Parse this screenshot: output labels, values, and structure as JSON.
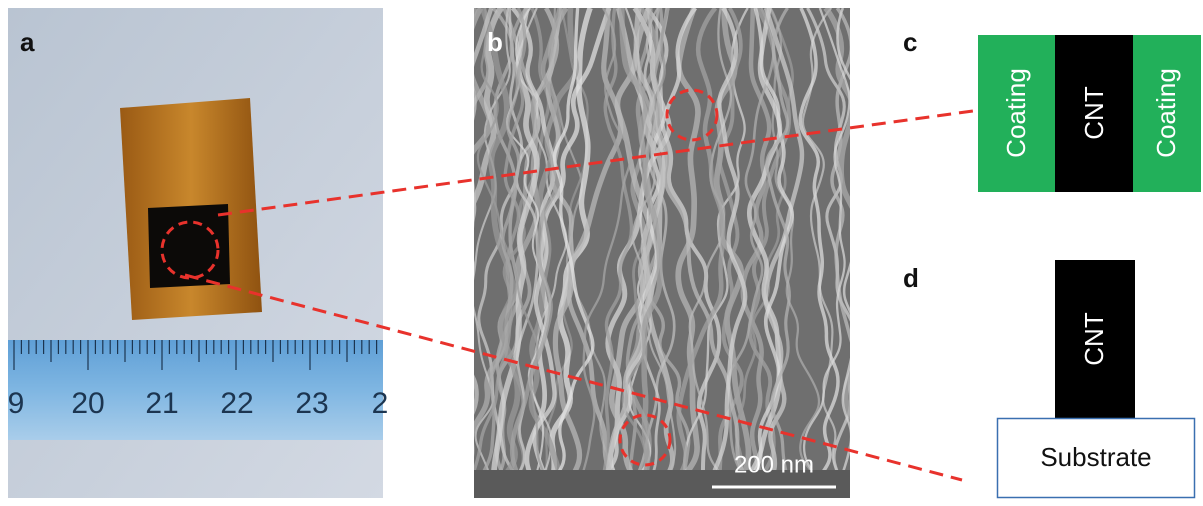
{
  "panels": {
    "a": {
      "label": "a",
      "ruler_labels": [
        "9",
        "20",
        "21",
        "22",
        "23",
        "2"
      ]
    },
    "b": {
      "label": "b",
      "scale_bar": "200 nm"
    },
    "c": {
      "label": "c",
      "layers": [
        "Coating",
        "CNT",
        "Coating"
      ]
    },
    "d": {
      "label": "d",
      "layers": [
        "CNT",
        "Substrate"
      ]
    }
  }
}
